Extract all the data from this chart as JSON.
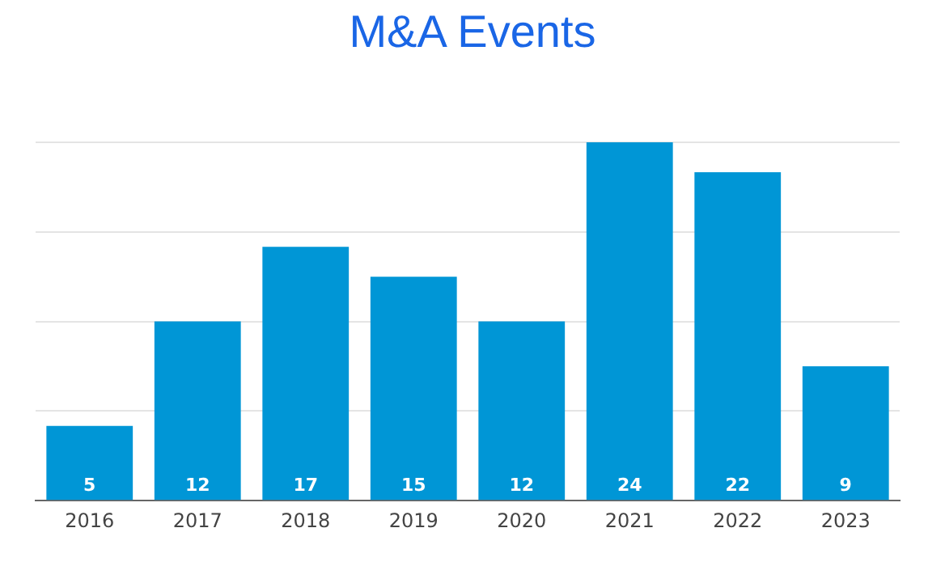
{
  "chart_data": {
    "type": "bar",
    "title": "M&A Events",
    "categories": [
      "2016",
      "2017",
      "2018",
      "2019",
      "2020",
      "2021",
      "2022",
      "2023"
    ],
    "values": [
      5,
      12,
      17,
      15,
      12,
      24,
      22,
      9
    ],
    "color": "#0096d6",
    "ylim": [
      0,
      24
    ],
    "yticks": [
      {
        "value": 0,
        "label": null
      },
      {
        "value": 6,
        "label": null
      },
      {
        "value": 12,
        "label": null
      },
      {
        "value": 18,
        "label": null
      },
      {
        "value": 24,
        "label": null
      }
    ],
    "grid": "y",
    "tick_labels": "x",
    "data_labels": true,
    "legend": false
  }
}
